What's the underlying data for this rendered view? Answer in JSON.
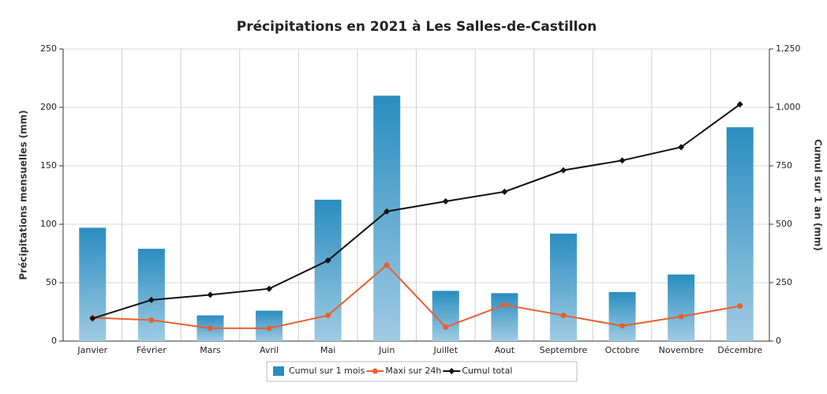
{
  "chart_data": {
    "type": "bar_line",
    "title": "Précipitations en 2021 à Les Salles-de-Castillon",
    "y_label": "Précipitations mensuelles (mm)",
    "y2_label": "Cumul sur 1 an (mm)",
    "categories": [
      "Janvier",
      "Février",
      "Mars",
      "Avril",
      "Mai",
      "Juin",
      "Juillet",
      "Aout",
      "Septembre",
      "Octobre",
      "Novembre",
      "Décembre"
    ],
    "series": [
      {
        "name": "Cumul sur 1 mois",
        "type": "bar",
        "color": "#2a8dc0",
        "values": [
          97,
          79,
          22,
          26,
          121,
          210,
          43,
          41,
          92,
          42,
          57,
          183
        ]
      },
      {
        "name": "Maxi sur 24h",
        "type": "line",
        "color": "#e8602c",
        "values": [
          20,
          18,
          11,
          11,
          22,
          65,
          12,
          31,
          22,
          13,
          21,
          30
        ]
      },
      {
        "name": "Cumul total",
        "type": "line",
        "color": "#111111",
        "axis": "y2",
        "values": [
          97,
          176,
          198,
          224,
          345,
          555,
          598,
          639,
          731,
          773,
          830,
          1013
        ]
      }
    ],
    "ylim": [
      0,
      250
    ],
    "yticks": [
      0,
      50,
      100,
      150,
      200,
      250
    ],
    "y2lim": [
      0,
      1250
    ],
    "y2ticks": [
      0,
      250,
      500,
      750,
      {
        "value": 1000,
        "label": "1,000"
      },
      {
        "value": 1250,
        "label": "1,250"
      }
    ],
    "grid": true,
    "legend": "bottom"
  }
}
